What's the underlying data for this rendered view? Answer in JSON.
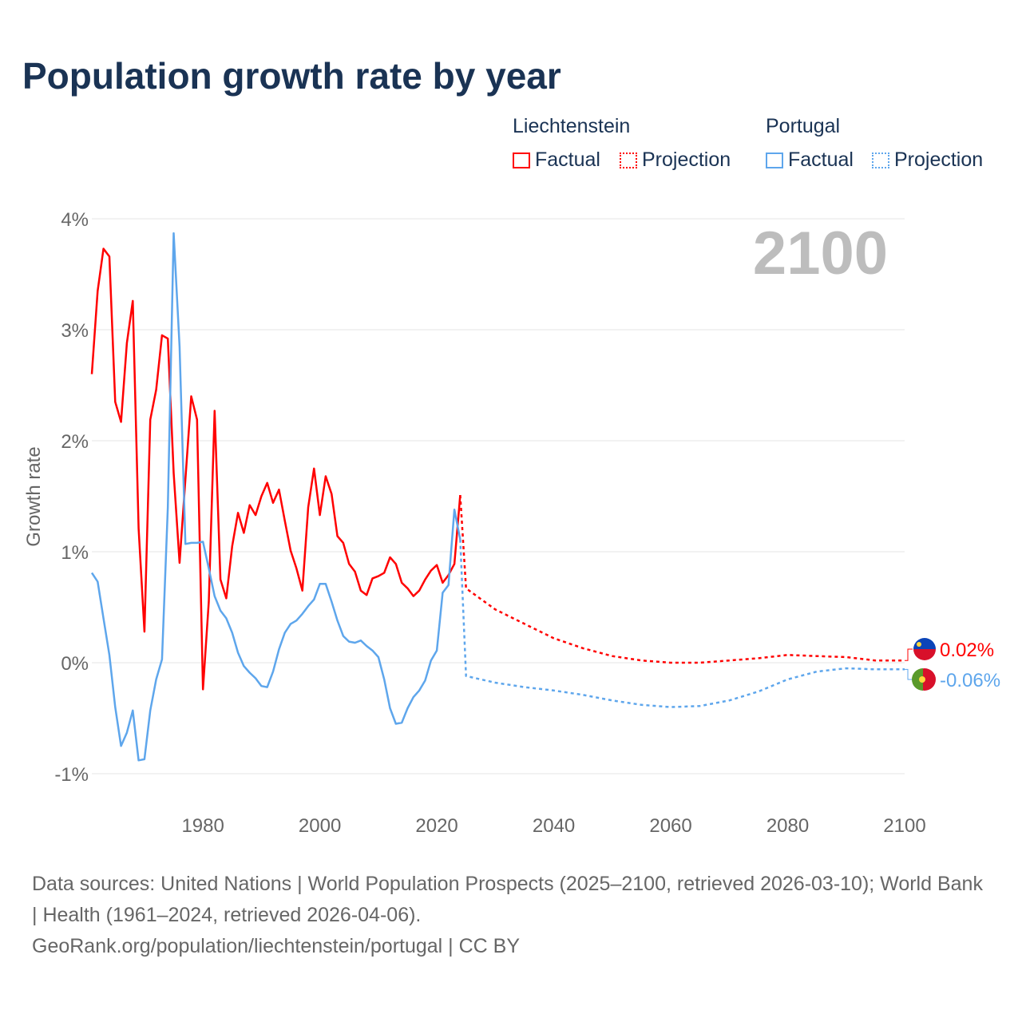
{
  "title": "Population growth rate by year",
  "legend": {
    "groups": [
      {
        "name": "Liechtenstein",
        "factual": "Factual",
        "projection": "Projection",
        "color": "#ff0000"
      },
      {
        "name": "Portugal",
        "factual": "Factual",
        "projection": "Projection",
        "color": "#5ea6ec"
      }
    ]
  },
  "footer": {
    "sources": "Data sources: United Nations | World Population Prospects (2025–2100, retrieved 2026-03-10); World Bank | Health (1961–2024, retrieved 2026-04-06).",
    "credit": "GeoRank.org/population/liechtenstein/portugal | CC BY"
  },
  "chart_data": {
    "type": "line",
    "title": "Population growth rate by year",
    "ylabel": "Growth rate",
    "xlabel": "",
    "year_label": "2100",
    "xlim": [
      1961,
      2100
    ],
    "ylim": [
      -1,
      4
    ],
    "xticks": [
      1980,
      2000,
      2020,
      2040,
      2060,
      2080,
      2100
    ],
    "yticks": [
      {
        "v": -1,
        "label": "-1%"
      },
      {
        "v": 0,
        "label": "0%"
      },
      {
        "v": 1,
        "label": "1%"
      },
      {
        "v": 2,
        "label": "2%"
      },
      {
        "v": 3,
        "label": "3%"
      },
      {
        "v": 4,
        "label": "4%"
      }
    ],
    "grid": true,
    "legend_position": "top-right",
    "series": [
      {
        "name": "Liechtenstein",
        "kind": "factual",
        "color": "#ff0000",
        "start": 1961,
        "step": 1,
        "values": [
          2.6,
          3.35,
          3.73,
          3.66,
          2.35,
          2.17,
          2.88,
          3.26,
          1.21,
          0.28,
          2.19,
          2.46,
          2.95,
          2.92,
          1.71,
          0.9,
          1.65,
          2.4,
          2.19,
          -0.24,
          0.55,
          2.27,
          0.75,
          0.58,
          1.05,
          1.35,
          1.17,
          1.42,
          1.33,
          1.5,
          1.62,
          1.44,
          1.56,
          1.28,
          1.01,
          0.85,
          0.65,
          1.4,
          1.75,
          1.33,
          1.68,
          1.52,
          1.14,
          1.08,
          0.89,
          0.82,
          0.65,
          0.61,
          0.76,
          0.78,
          0.81,
          0.95,
          0.89,
          0.72,
          0.67,
          0.6,
          0.65,
          0.75,
          0.83,
          0.88,
          0.72,
          0.79,
          0.89,
          1.51
        ]
      },
      {
        "name": "Liechtenstein",
        "kind": "projection",
        "color": "#ff0000",
        "start": 2024,
        "step": null,
        "years": [
          2024,
          2025,
          2030,
          2035,
          2040,
          2045,
          2050,
          2055,
          2060,
          2065,
          2070,
          2075,
          2080,
          2085,
          2090,
          2095,
          2100
        ],
        "values": [
          1.51,
          0.67,
          0.48,
          0.35,
          0.22,
          0.13,
          0.06,
          0.02,
          0.0,
          0.0,
          0.02,
          0.04,
          0.07,
          0.06,
          0.05,
          0.02,
          0.02
        ]
      },
      {
        "name": "Portugal",
        "kind": "factual",
        "color": "#5ea6ec",
        "start": 1961,
        "step": 1,
        "values": [
          0.81,
          0.73,
          0.4,
          0.07,
          -0.4,
          -0.75,
          -0.63,
          -0.43,
          -0.88,
          -0.87,
          -0.43,
          -0.15,
          0.03,
          1.4,
          3.87,
          2.85,
          1.07,
          1.08,
          1.08,
          1.09,
          0.85,
          0.6,
          0.47,
          0.4,
          0.27,
          0.09,
          -0.03,
          -0.09,
          -0.14,
          -0.21,
          -0.22,
          -0.08,
          0.12,
          0.27,
          0.35,
          0.38,
          0.44,
          0.51,
          0.57,
          0.71,
          0.71,
          0.55,
          0.38,
          0.24,
          0.19,
          0.18,
          0.2,
          0.15,
          0.11,
          0.05,
          -0.15,
          -0.41,
          -0.55,
          -0.54,
          -0.41,
          -0.31,
          -0.25,
          -0.16,
          0.02,
          0.11,
          0.63,
          0.7,
          1.38,
          1.11
        ]
      },
      {
        "name": "Portugal",
        "kind": "projection",
        "color": "#5ea6ec",
        "start": 2024,
        "step": null,
        "years": [
          2024,
          2025,
          2030,
          2035,
          2040,
          2045,
          2050,
          2055,
          2060,
          2065,
          2070,
          2075,
          2080,
          2085,
          2090,
          2095,
          2100
        ],
        "values": [
          1.11,
          -0.12,
          -0.18,
          -0.22,
          -0.25,
          -0.29,
          -0.34,
          -0.38,
          -0.4,
          -0.39,
          -0.34,
          -0.26,
          -0.15,
          -0.08,
          -0.05,
          -0.06,
          -0.06
        ]
      }
    ],
    "end_labels": [
      {
        "country": "Liechtenstein",
        "value": 0.02,
        "label": "0.02%",
        "color": "#ff0000"
      },
      {
        "country": "Portugal",
        "value": -0.06,
        "label": "-0.06%",
        "color": "#5ea6ec"
      }
    ]
  }
}
